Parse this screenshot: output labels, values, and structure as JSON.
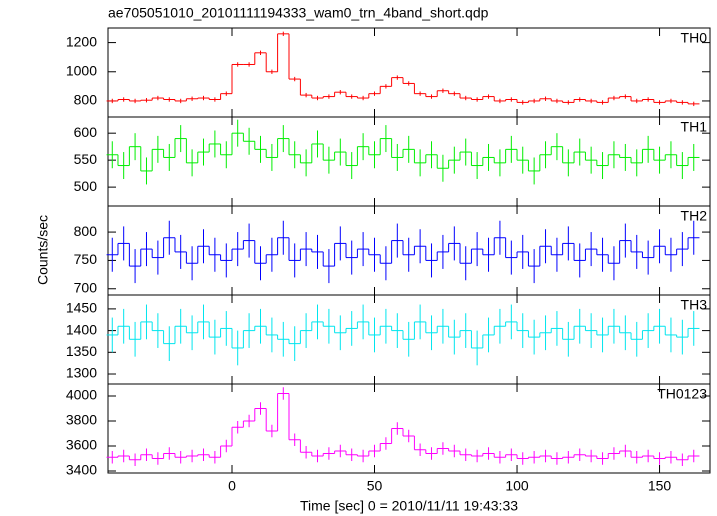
{
  "title": "ae705051010_20101111194333_wam0_trn_4band_short.qdp",
  "ylabel": "Counts/sec",
  "chart_data": [
    {
      "type": "step",
      "name": "TH0",
      "color": "#ff0000",
      "error": 15,
      "xlim": [
        -43.5,
        167.7
      ],
      "ylim": [
        690,
        1300
      ],
      "yticks": [
        800,
        1000,
        1200
      ],
      "x": [
        -42,
        -38,
        -34,
        -30,
        -26,
        -22,
        -18,
        -14,
        -10,
        -6,
        -2,
        2,
        6,
        10,
        14,
        18,
        22,
        26,
        30,
        34,
        38,
        42,
        46,
        50,
        54,
        58,
        62,
        66,
        70,
        74,
        78,
        82,
        86,
        90,
        94,
        98,
        102,
        106,
        110,
        114,
        118,
        122,
        126,
        130,
        134,
        138,
        142,
        146,
        150,
        154,
        158,
        162
      ],
      "values": [
        800,
        810,
        800,
        805,
        820,
        810,
        800,
        815,
        820,
        810,
        850,
        1050,
        1050,
        1130,
        1000,
        1260,
        950,
        840,
        820,
        830,
        860,
        830,
        820,
        850,
        900,
        960,
        920,
        850,
        830,
        870,
        850,
        820,
        810,
        830,
        800,
        810,
        790,
        800,
        815,
        800,
        790,
        810,
        800,
        790,
        820,
        830,
        800,
        810,
        790,
        800,
        790,
        780
      ]
    },
    {
      "type": "step",
      "name": "TH1",
      "color": "#00ee00",
      "error": 25,
      "xlim": [
        -43.5,
        167.7
      ],
      "ylim": [
        465,
        630
      ],
      "yticks": [
        500,
        550,
        600
      ],
      "x": [
        -42,
        -38,
        -34,
        -30,
        -26,
        -22,
        -18,
        -14,
        -10,
        -6,
        -2,
        2,
        6,
        10,
        14,
        18,
        22,
        26,
        30,
        34,
        38,
        42,
        46,
        50,
        54,
        58,
        62,
        66,
        70,
        74,
        78,
        82,
        86,
        90,
        94,
        98,
        102,
        106,
        110,
        114,
        118,
        122,
        126,
        130,
        134,
        138,
        142,
        146,
        150,
        154,
        158,
        162
      ],
      "values": [
        560,
        540,
        575,
        530,
        570,
        555,
        590,
        545,
        565,
        580,
        560,
        600,
        585,
        570,
        555,
        590,
        560,
        545,
        580,
        550,
        565,
        540,
        575,
        560,
        590,
        555,
        570,
        545,
        560,
        535,
        550,
        565,
        540,
        555,
        545,
        570,
        550,
        530,
        560,
        575,
        545,
        565,
        550,
        540,
        560,
        555,
        545,
        570,
        550,
        560,
        540,
        555
      ]
    },
    {
      "type": "step",
      "name": "TH2",
      "color": "#0000ff",
      "error": 30,
      "xlim": [
        -43.5,
        167.7
      ],
      "ylim": [
        689,
        846
      ],
      "yticks": [
        700,
        750,
        800
      ],
      "x": [
        -42,
        -38,
        -34,
        -30,
        -26,
        -22,
        -18,
        -14,
        -10,
        -6,
        -2,
        2,
        6,
        10,
        14,
        18,
        22,
        26,
        30,
        34,
        38,
        42,
        46,
        50,
        54,
        58,
        62,
        66,
        70,
        74,
        78,
        82,
        86,
        90,
        94,
        98,
        102,
        106,
        110,
        114,
        118,
        122,
        126,
        130,
        134,
        138,
        142,
        146,
        150,
        154,
        158,
        162
      ],
      "values": [
        760,
        780,
        740,
        770,
        755,
        790,
        765,
        745,
        775,
        760,
        750,
        770,
        785,
        745,
        760,
        790,
        750,
        770,
        765,
        740,
        780,
        755,
        770,
        760,
        745,
        785,
        760,
        775,
        750,
        765,
        780,
        745,
        770,
        760,
        790,
        755,
        765,
        740,
        775,
        760,
        780,
        750,
        770,
        760,
        745,
        785,
        765,
        755,
        775,
        760,
        770,
        790
      ]
    },
    {
      "type": "step",
      "name": "TH3",
      "color": "#00e5ee",
      "error": 40,
      "xlim": [
        -43.5,
        167.7
      ],
      "ylim": [
        1277,
        1482
      ],
      "yticks": [
        1300,
        1350,
        1400,
        1450
      ],
      "x": [
        -42,
        -38,
        -34,
        -30,
        -26,
        -22,
        -18,
        -14,
        -10,
        -6,
        -2,
        2,
        6,
        10,
        14,
        18,
        22,
        26,
        30,
        34,
        38,
        42,
        46,
        50,
        54,
        58,
        62,
        66,
        70,
        74,
        78,
        82,
        86,
        90,
        94,
        98,
        102,
        106,
        110,
        114,
        118,
        122,
        126,
        130,
        134,
        138,
        142,
        146,
        150,
        154,
        158,
        162
      ],
      "values": [
        1390,
        1410,
        1380,
        1420,
        1400,
        1370,
        1410,
        1395,
        1420,
        1385,
        1405,
        1360,
        1400,
        1410,
        1390,
        1380,
        1370,
        1400,
        1420,
        1410,
        1395,
        1405,
        1420,
        1390,
        1410,
        1400,
        1380,
        1420,
        1395,
        1410,
        1385,
        1400,
        1360,
        1390,
        1410,
        1420,
        1400,
        1385,
        1395,
        1405,
        1380,
        1410,
        1400,
        1390,
        1410,
        1395,
        1380,
        1400,
        1410,
        1390,
        1385,
        1405
      ]
    },
    {
      "type": "step",
      "name": "TH0123",
      "color": "#ff00ff",
      "error": 50,
      "xlim": [
        -43.5,
        167.7
      ],
      "ylim": [
        3384,
        4096
      ],
      "yticks": [
        3400,
        3600,
        3800,
        4000
      ],
      "xlabel": "Time [sec] 0 = 2010/11/11 19:43:33",
      "xticks": [
        0,
        50,
        100,
        150
      ],
      "x": [
        -42,
        -38,
        -34,
        -30,
        -26,
        -22,
        -18,
        -14,
        -10,
        -6,
        -2,
        2,
        6,
        10,
        14,
        18,
        22,
        26,
        30,
        34,
        38,
        42,
        46,
        50,
        54,
        58,
        62,
        66,
        70,
        74,
        78,
        82,
        86,
        90,
        94,
        98,
        102,
        106,
        110,
        114,
        118,
        122,
        126,
        130,
        134,
        138,
        142,
        146,
        150,
        154,
        158,
        162
      ],
      "values": [
        3510,
        3520,
        3490,
        3530,
        3500,
        3540,
        3510,
        3520,
        3530,
        3510,
        3600,
        3750,
        3800,
        3900,
        3720,
        4020,
        3650,
        3550,
        3520,
        3540,
        3560,
        3530,
        3520,
        3560,
        3620,
        3740,
        3680,
        3570,
        3540,
        3580,
        3560,
        3530,
        3520,
        3540,
        3510,
        3530,
        3500,
        3510,
        3520,
        3500,
        3510,
        3530,
        3520,
        3500,
        3540,
        3560,
        3510,
        3520,
        3500,
        3510,
        3490,
        3520
      ]
    }
  ]
}
